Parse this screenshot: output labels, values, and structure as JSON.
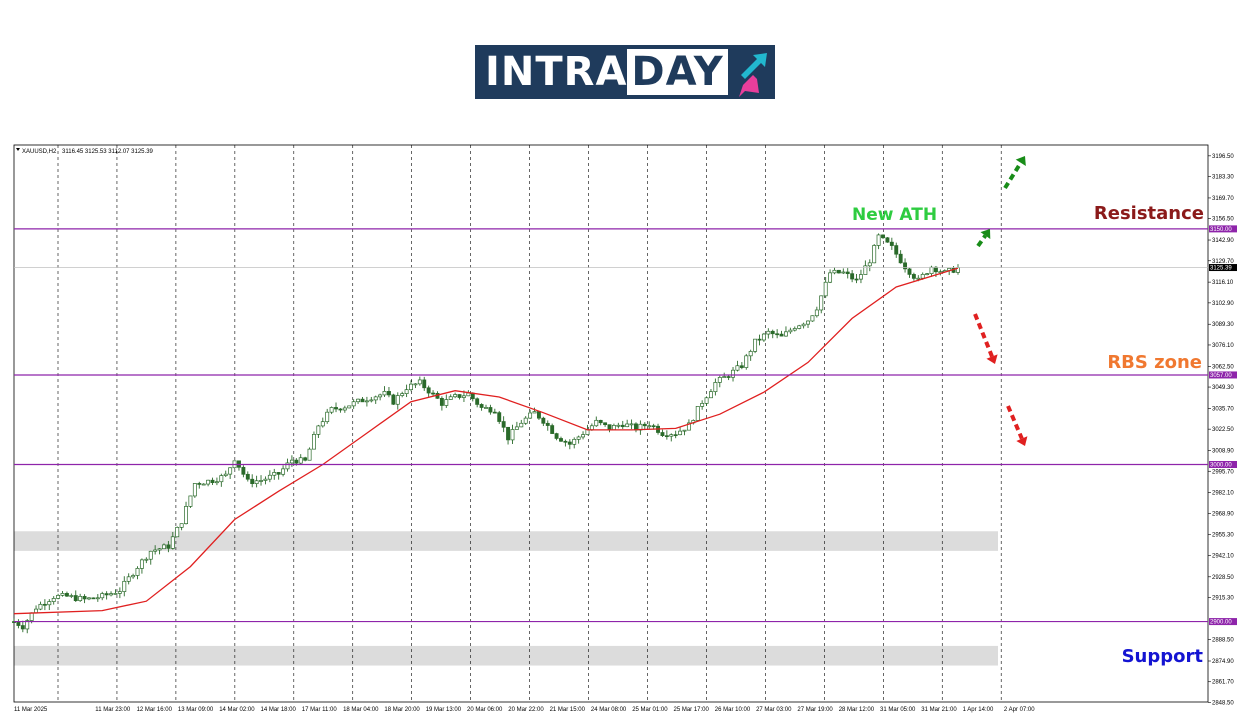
{
  "logo": {
    "text": [
      "INTRA",
      "DAY"
    ],
    "colors": {
      "background": "#1f3b5c",
      "arrow_up": "#22b8cf",
      "arrow_down": "#e83e9b"
    }
  },
  "chart_data": {
    "type": "candlestick",
    "symbol_header": "XAUUSD,H2",
    "ohlc_header": "3116.45 3125.53 3112.07 3125.39",
    "ylim": [
      2848.8,
      3203.4
    ],
    "y_ticks": [
      "3196.50",
      "3183.30",
      "3169.70",
      "3156.50",
      "3142.90",
      "3129.70",
      "3116.10",
      "3102.90",
      "3089.30",
      "3076.10",
      "3062.50",
      "3049.30",
      "3035.70",
      "3022.50",
      "3008.90",
      "2995.70",
      "2982.10",
      "2968.90",
      "2955.30",
      "2942.10",
      "2928.50",
      "2915.30",
      "2888.50",
      "2874.90",
      "2861.70",
      "2848.50"
    ],
    "x_ticks": [
      "11 Mar 2025",
      "11 Mar 23:00",
      "12 Mar 16:00",
      "13 Mar 09:00",
      "14 Mar 02:00",
      "14 Mar 18:00",
      "17 Mar 11:00",
      "18 Mar 04:00",
      "18 Mar 20:00",
      "19 Mar 13:00",
      "20 Mar 06:00",
      "20 Mar 22:00",
      "21 Mar 15:00",
      "24 Mar 08:00",
      "25 Mar 01:00",
      "25 Mar 17:00",
      "26 Mar 10:00",
      "27 Mar 03:00",
      "27 Mar 19:00",
      "28 Mar 12:00",
      "31 Mar 05:00",
      "31 Mar 21:00",
      "1 Apr 14:00",
      "2 Apr 07:00"
    ],
    "current_price": {
      "value": 3125.39,
      "label": "3125.39"
    },
    "levels": [
      {
        "value": 3150.0,
        "label": "3150.00",
        "annotation": "Resistance",
        "annotation_color": "#8b1a1a"
      },
      {
        "value": 3057.0,
        "label": "3057.00",
        "annotation": "RBS zone",
        "annotation_color": "#f07830"
      },
      {
        "value": 3000.0,
        "label": "3000.00"
      },
      {
        "value": 2900.0,
        "label": "2900.00",
        "annotation": "Support",
        "annotation_color": "#1414d2"
      }
    ],
    "zones": [
      {
        "from": 2945.0,
        "to": 2957.5
      },
      {
        "from": 2872.0,
        "to": 2884.5
      }
    ],
    "price_path": [
      [
        0,
        2900
      ],
      [
        2,
        2897
      ],
      [
        5,
        2909
      ],
      [
        9,
        2916
      ],
      [
        12,
        2916
      ],
      [
        16,
        2914
      ],
      [
        20,
        2916
      ],
      [
        24,
        2920
      ],
      [
        28,
        2935
      ],
      [
        31,
        2945
      ],
      [
        35,
        2948
      ],
      [
        38,
        2964
      ],
      [
        41,
        2988
      ],
      [
        45,
        2990
      ],
      [
        48,
        2993
      ],
      [
        50,
        3004
      ],
      [
        53,
        2989
      ],
      [
        56,
        2990
      ],
      [
        60,
        2994
      ],
      [
        63,
        3003
      ],
      [
        66,
        3002
      ],
      [
        69,
        3025
      ],
      [
        72,
        3035
      ],
      [
        75,
        3037
      ],
      [
        78,
        3040
      ],
      [
        81,
        3043
      ],
      [
        84,
        3045
      ],
      [
        86,
        3040
      ],
      [
        89,
        3049
      ],
      [
        92,
        3052
      ],
      [
        94,
        3047
      ],
      [
        97,
        3039
      ],
      [
        100,
        3043
      ],
      [
        103,
        3045
      ],
      [
        106,
        3036
      ],
      [
        109,
        3035
      ],
      [
        112,
        3017
      ],
      [
        115,
        3027
      ],
      [
        118,
        3033
      ],
      [
        120,
        3028
      ],
      [
        123,
        3018
      ],
      [
        126,
        3013
      ],
      [
        129,
        3020
      ],
      [
        132,
        3027
      ],
      [
        135,
        3023
      ],
      [
        138,
        3026
      ],
      [
        141,
        3023
      ],
      [
        144,
        3026
      ],
      [
        147,
        3020
      ],
      [
        150,
        3020
      ],
      [
        153,
        3025
      ],
      [
        156,
        3040
      ],
      [
        159,
        3052
      ],
      [
        162,
        3057
      ],
      [
        165,
        3063
      ],
      [
        168,
        3078
      ],
      [
        171,
        3084
      ],
      [
        174,
        3081
      ],
      [
        177,
        3088
      ],
      [
        180,
        3092
      ],
      [
        182,
        3100
      ],
      [
        185,
        3122
      ],
      [
        188,
        3122
      ],
      [
        191,
        3117
      ],
      [
        194,
        3130
      ],
      [
        196,
        3145
      ],
      [
        199,
        3138
      ],
      [
        202,
        3126
      ],
      [
        205,
        3117
      ],
      [
        208,
        3126
      ],
      [
        211,
        3122
      ],
      [
        214,
        3125
      ]
    ],
    "ma_line": [
      [
        0,
        2905
      ],
      [
        20,
        2907
      ],
      [
        30,
        2913
      ],
      [
        40,
        2935
      ],
      [
        50,
        2965
      ],
      [
        60,
        2983
      ],
      [
        70,
        3000
      ],
      [
        80,
        3020
      ],
      [
        90,
        3040
      ],
      [
        100,
        3047
      ],
      [
        110,
        3043
      ],
      [
        120,
        3033
      ],
      [
        130,
        3022
      ],
      [
        140,
        3022
      ],
      [
        150,
        3023
      ],
      [
        160,
        3032
      ],
      [
        170,
        3046
      ],
      [
        180,
        3065
      ],
      [
        190,
        3093
      ],
      [
        200,
        3113
      ],
      [
        214,
        3125
      ]
    ],
    "annotations": [
      {
        "text": "New ATH",
        "color": "#2ecc40"
      }
    ],
    "scenario_arrows": [
      {
        "direction": "up",
        "color": "#188c18"
      },
      {
        "direction": "up",
        "color": "#188c18"
      },
      {
        "direction": "down",
        "color": "#e02020"
      },
      {
        "direction": "down",
        "color": "#e02020"
      }
    ],
    "colors": {
      "ma": "#e02020",
      "level": "#8e24aa",
      "grid": "#000000",
      "zone": "#dcdcdc",
      "candle": "#2a6a2a"
    }
  }
}
